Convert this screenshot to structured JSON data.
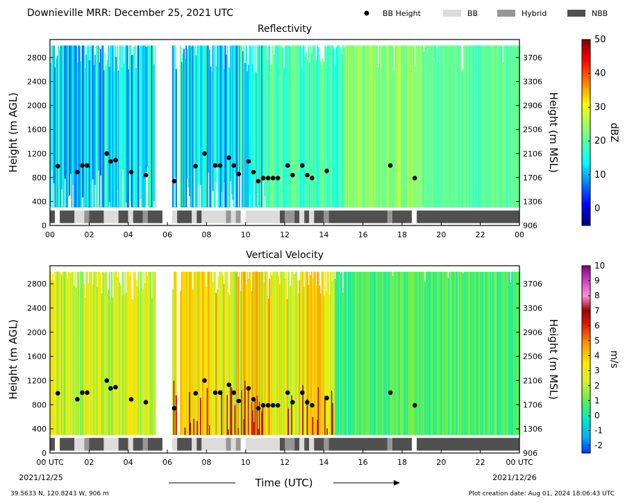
{
  "header": {
    "title": "Downieville MRR:  December 25, 2021 UTC",
    "legend": [
      {
        "label": "BB Height",
        "kind": "dot",
        "color": "#000000"
      },
      {
        "label": "BB",
        "kind": "box",
        "color": "#dcdcdc"
      },
      {
        "label": "Hybrid",
        "kind": "box",
        "color": "#969696"
      },
      {
        "label": "NBB",
        "kind": "box",
        "color": "#505050"
      }
    ]
  },
  "footer": {
    "location": "39.5633 N, 120.8243 W, 906 m",
    "creation": "Plot creation date: Aug 01, 2024 18:06:43 UTC",
    "xlabel": "Time (UTC)",
    "start_date": "2021/12/25",
    "end_date": "2021/12/26"
  },
  "chart_data": [
    {
      "type": "heatmap",
      "title": "Reflectivity",
      "ylabel": "Height (m AGL)",
      "y2label": "Height (m MSL)",
      "colorbar_label": "dBZ",
      "xlim": [
        0,
        24
      ],
      "ylim": [
        0,
        3100
      ],
      "xticks": [
        "00",
        "02",
        "04",
        "06",
        "08",
        "10",
        "12",
        "14",
        "16",
        "18",
        "20",
        "22",
        "00"
      ],
      "yticks": [
        0,
        400,
        800,
        1200,
        1600,
        2000,
        2400,
        2800
      ],
      "y2ticks": [
        906,
        1306,
        1706,
        2106,
        2506,
        2906,
        3306,
        3706
      ],
      "colorbar": {
        "min": -5,
        "max": 50,
        "ticks": [
          0,
          10,
          20,
          30,
          40,
          50
        ],
        "colormap": "jet"
      },
      "data_height_range": [
        300,
        3000
      ],
      "data_gaps_utc": [
        [
          5.35,
          6.2
        ],
        [
          6.45,
          6.6
        ]
      ],
      "bb_height": {
        "times": [
          0.4,
          1.4,
          1.65,
          1.9,
          2.9,
          3.1,
          3.35,
          4.15,
          4.9,
          6.35,
          7.45,
          7.9,
          8.45,
          8.7,
          9.15,
          9.4,
          9.65,
          10.15,
          10.4,
          10.65,
          10.9,
          11.15,
          11.4,
          11.65,
          12.15,
          12.4,
          12.9,
          13.15,
          13.4,
          14.15,
          17.4,
          18.65
        ],
        "heights": [
          990,
          890,
          1000,
          1000,
          1200,
          1070,
          1090,
          890,
          840,
          740,
          990,
          1200,
          1000,
          1000,
          1130,
          1000,
          860,
          1070,
          890,
          740,
          790,
          790,
          790,
          790,
          1000,
          840,
          1000,
          840,
          790,
          910,
          1000,
          790
        ]
      },
      "bb_type_strip": [
        {
          "start": 0.0,
          "end": 0.25,
          "type": "NBB"
        },
        {
          "start": 0.5,
          "end": 1.25,
          "type": "NBB"
        },
        {
          "start": 1.25,
          "end": 1.75,
          "type": "BB"
        },
        {
          "start": 1.75,
          "end": 2.0,
          "type": "Hybrid"
        },
        {
          "start": 2.0,
          "end": 2.75,
          "type": "NBB"
        },
        {
          "start": 2.75,
          "end": 3.5,
          "type": "BB"
        },
        {
          "start": 3.5,
          "end": 4.0,
          "type": "NBB"
        },
        {
          "start": 4.0,
          "end": 4.25,
          "type": "BB"
        },
        {
          "start": 4.25,
          "end": 4.75,
          "type": "NBB"
        },
        {
          "start": 4.75,
          "end": 5.0,
          "type": "Hybrid"
        },
        {
          "start": 5.0,
          "end": 5.75,
          "type": "NBB"
        },
        {
          "start": 6.25,
          "end": 6.5,
          "type": "BB"
        },
        {
          "start": 6.5,
          "end": 7.25,
          "type": "NBB"
        },
        {
          "start": 7.25,
          "end": 7.5,
          "type": "BB"
        },
        {
          "start": 7.5,
          "end": 7.75,
          "type": "NBB"
        },
        {
          "start": 7.75,
          "end": 9.0,
          "type": "BB"
        },
        {
          "start": 9.0,
          "end": 9.25,
          "type": "Hybrid"
        },
        {
          "start": 9.25,
          "end": 9.5,
          "type": "BB"
        },
        {
          "start": 9.5,
          "end": 9.75,
          "type": "Hybrid"
        },
        {
          "start": 10.0,
          "end": 11.75,
          "type": "BB"
        },
        {
          "start": 11.75,
          "end": 12.0,
          "type": "NBB"
        },
        {
          "start": 12.0,
          "end": 12.5,
          "type": "Hybrid"
        },
        {
          "start": 12.5,
          "end": 12.75,
          "type": "NBB"
        },
        {
          "start": 12.75,
          "end": 13.0,
          "type": "BB"
        },
        {
          "start": 13.0,
          "end": 13.25,
          "type": "NBB"
        },
        {
          "start": 13.25,
          "end": 13.5,
          "type": "BB"
        },
        {
          "start": 13.5,
          "end": 14.0,
          "type": "NBB"
        },
        {
          "start": 14.0,
          "end": 14.25,
          "type": "Hybrid"
        },
        {
          "start": 14.25,
          "end": 17.25,
          "type": "NBB"
        },
        {
          "start": 17.25,
          "end": 17.5,
          "type": "Hybrid"
        },
        {
          "start": 17.5,
          "end": 18.5,
          "type": "NBB"
        },
        {
          "start": 18.75,
          "end": 24.0,
          "type": "NBB"
        }
      ]
    },
    {
      "type": "heatmap",
      "title": "Vertical Velocity",
      "ylabel": "Height (m AGL)",
      "y2label": "Height (m MSL)",
      "colorbar_label": "m/s",
      "xlim": [
        0,
        24
      ],
      "ylim": [
        0,
        3100
      ],
      "xticks": [
        "00 UTC",
        "02",
        "04",
        "06",
        "08",
        "10",
        "12",
        "14",
        "16",
        "18",
        "20",
        "22",
        "00 UTC"
      ],
      "yticks": [
        0,
        400,
        800,
        1200,
        1600,
        2000,
        2400,
        2800
      ],
      "y2ticks": [
        906,
        1306,
        1706,
        2106,
        2506,
        2906,
        3306,
        3706
      ],
      "colorbar": {
        "min": -2.5,
        "max": 10,
        "ticks": [
          -2,
          -1,
          0,
          1,
          2,
          3,
          4,
          5,
          6,
          7,
          8,
          9,
          10
        ],
        "colormap": "velocity"
      },
      "data_height_range": [
        300,
        3000
      ],
      "data_gaps_utc": [
        [
          5.35,
          6.2
        ],
        [
          6.45,
          6.6
        ]
      ],
      "bb_height": {
        "times": [
          0.4,
          1.4,
          1.65,
          1.9,
          2.9,
          3.1,
          3.35,
          4.15,
          4.9,
          6.35,
          7.45,
          7.9,
          8.45,
          8.7,
          9.15,
          9.4,
          9.65,
          10.15,
          10.4,
          10.65,
          10.9,
          11.15,
          11.4,
          11.65,
          12.15,
          12.4,
          12.9,
          13.15,
          13.4,
          14.15,
          17.4,
          18.65
        ],
        "heights": [
          990,
          890,
          1000,
          1000,
          1200,
          1070,
          1090,
          890,
          840,
          740,
          990,
          1200,
          1000,
          1000,
          1130,
          1000,
          860,
          1070,
          890,
          740,
          790,
          790,
          790,
          790,
          1000,
          840,
          1000,
          840,
          790,
          910,
          1000,
          790
        ]
      },
      "bb_type_strip": [
        {
          "start": 0.0,
          "end": 0.25,
          "type": "NBB"
        },
        {
          "start": 0.5,
          "end": 1.25,
          "type": "NBB"
        },
        {
          "start": 1.25,
          "end": 1.75,
          "type": "BB"
        },
        {
          "start": 1.75,
          "end": 2.0,
          "type": "Hybrid"
        },
        {
          "start": 2.0,
          "end": 2.75,
          "type": "NBB"
        },
        {
          "start": 2.75,
          "end": 3.5,
          "type": "BB"
        },
        {
          "start": 3.5,
          "end": 4.0,
          "type": "NBB"
        },
        {
          "start": 4.0,
          "end": 4.25,
          "type": "BB"
        },
        {
          "start": 4.25,
          "end": 4.75,
          "type": "NBB"
        },
        {
          "start": 4.75,
          "end": 5.0,
          "type": "Hybrid"
        },
        {
          "start": 5.0,
          "end": 5.75,
          "type": "NBB"
        },
        {
          "start": 6.25,
          "end": 6.5,
          "type": "BB"
        },
        {
          "start": 6.5,
          "end": 7.25,
          "type": "NBB"
        },
        {
          "start": 7.25,
          "end": 7.5,
          "type": "BB"
        },
        {
          "start": 7.5,
          "end": 7.75,
          "type": "NBB"
        },
        {
          "start": 7.75,
          "end": 9.0,
          "type": "BB"
        },
        {
          "start": 9.0,
          "end": 9.25,
          "type": "Hybrid"
        },
        {
          "start": 9.25,
          "end": 9.5,
          "type": "BB"
        },
        {
          "start": 9.5,
          "end": 9.75,
          "type": "Hybrid"
        },
        {
          "start": 10.0,
          "end": 11.75,
          "type": "BB"
        },
        {
          "start": 11.75,
          "end": 12.0,
          "type": "NBB"
        },
        {
          "start": 12.0,
          "end": 12.5,
          "type": "Hybrid"
        },
        {
          "start": 12.5,
          "end": 12.75,
          "type": "NBB"
        },
        {
          "start": 12.75,
          "end": 13.0,
          "type": "BB"
        },
        {
          "start": 13.0,
          "end": 13.25,
          "type": "NBB"
        },
        {
          "start": 13.25,
          "end": 13.5,
          "type": "BB"
        },
        {
          "start": 13.5,
          "end": 14.0,
          "type": "NBB"
        },
        {
          "start": 14.0,
          "end": 14.25,
          "type": "Hybrid"
        },
        {
          "start": 14.25,
          "end": 17.25,
          "type": "NBB"
        },
        {
          "start": 17.25,
          "end": 17.5,
          "type": "Hybrid"
        },
        {
          "start": 17.5,
          "end": 18.5,
          "type": "NBB"
        },
        {
          "start": 18.75,
          "end": 24.0,
          "type": "NBB"
        }
      ]
    }
  ]
}
